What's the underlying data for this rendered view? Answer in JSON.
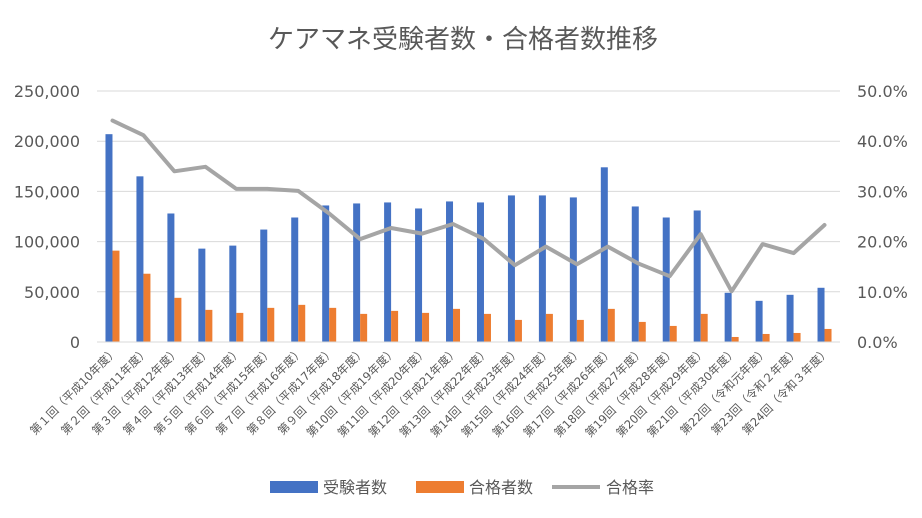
{
  "chart_data": {
    "type": "bar",
    "title": "ケアマネ受験者数・合格者数推移",
    "categories": [
      "第１回（平成10年度）",
      "第２回（平成11年度）",
      "第３回（平成12年度）",
      "第４回（平成13年度）",
      "第５回（平成14年度）",
      "第６回（平成15年度）",
      "第７回（平成16年度）",
      "第８回（平成17年度）",
      "第９回（平成18年度）",
      "第10回（平成19年度）",
      "第11回（平成20年度）",
      "第12回（平成21年度）",
      "第13回（平成22年度）",
      "第14回（平成23年度）",
      "第15回（平成24年度）",
      "第16回（平成25年度）",
      "第17回（平成26年度）",
      "第18回（平成27年度）",
      "第19回（平成28年度）",
      "第20回（平成29年度）",
      "第21回（平成30年度）",
      "第22回（令和元年度）",
      "第23回（令和２年度）",
      "第24回（令和３年度）"
    ],
    "series": [
      {
        "name": "受験者数",
        "type": "bar",
        "axis": "left",
        "color": "#4472C4",
        "values": [
          207000,
          165000,
          128000,
          93000,
          96000,
          112000,
          124000,
          136000,
          138000,
          139000,
          133000,
          140000,
          139000,
          146000,
          146000,
          144000,
          174000,
          135000,
          124000,
          131000,
          49000,
          41000,
          47000,
          54000
        ]
      },
      {
        "name": "合格者数",
        "type": "bar",
        "axis": "left",
        "color": "#ED7D31",
        "values": [
          91000,
          68000,
          44000,
          32000,
          29000,
          34000,
          37000,
          34000,
          28000,
          31000,
          29000,
          33000,
          28000,
          22000,
          28000,
          22000,
          33000,
          20000,
          16000,
          28000,
          5000,
          8000,
          9000,
          13000
        ]
      },
      {
        "name": "合格率",
        "type": "line",
        "axis": "right",
        "color": "#A5A5A5",
        "values": [
          44.1,
          41.2,
          34.0,
          34.9,
          30.5,
          30.5,
          30.1,
          25.6,
          20.5,
          22.7,
          21.6,
          23.5,
          20.5,
          15.3,
          19.0,
          15.5,
          19.0,
          15.6,
          13.1,
          21.5,
          10.1,
          19.5,
          17.7,
          23.3
        ]
      }
    ],
    "left_axis": {
      "ticks": [
        "0",
        "50,000",
        "100,000",
        "150,000",
        "200,000",
        "250,000"
      ],
      "ylim": [
        0,
        250000
      ]
    },
    "right_axis": {
      "ticks": [
        "0.0%",
        "10.0%",
        "20.0%",
        "30.0%",
        "40.0%",
        "50.0%"
      ],
      "ylim": [
        0,
        50
      ]
    },
    "grid": true,
    "legend_position": "bottom"
  }
}
